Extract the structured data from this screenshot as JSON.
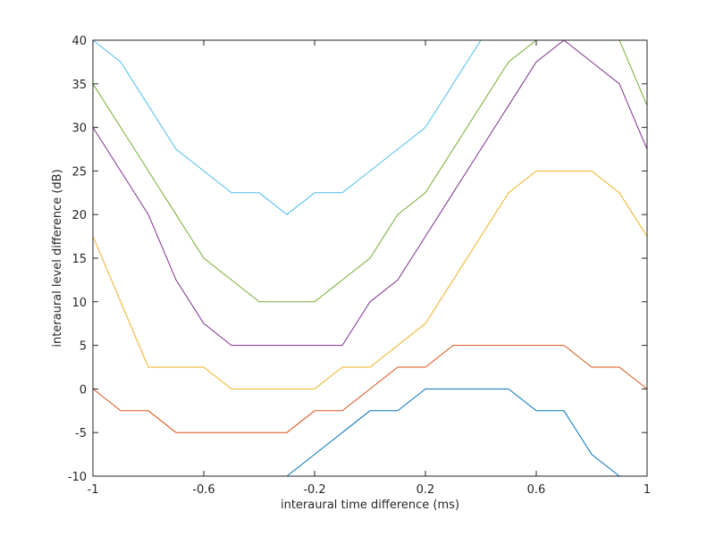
{
  "chart_data": {
    "type": "line",
    "title": "",
    "xlabel": "interaural time difference (ms)",
    "ylabel": "interaural level difference (dB)",
    "xlim": [
      -1,
      1
    ],
    "ylim": [
      -10,
      40
    ],
    "xticks": [
      -1,
      -0.6,
      -0.2,
      0.2,
      0.6,
      1
    ],
    "xtick_labels": [
      "-1",
      "-0.6",
      "-0.2",
      "0.2",
      "0.6",
      "1"
    ],
    "yticks": [
      -10,
      -5,
      0,
      5,
      10,
      15,
      20,
      25,
      30,
      35,
      40
    ],
    "ytick_labels": [
      "-10",
      "-5",
      "0",
      "5",
      "10",
      "15",
      "20",
      "25",
      "30",
      "35",
      "40"
    ],
    "grid": false,
    "legend": "none",
    "x": [
      -1,
      -0.9,
      -0.8,
      -0.7,
      -0.6,
      -0.5,
      -0.4,
      -0.3,
      -0.2,
      -0.1,
      0,
      0.1,
      0.2,
      0.3,
      0.4,
      0.5,
      0.6,
      0.7,
      0.8,
      0.9,
      1
    ],
    "series": [
      {
        "color": "#0072BD",
        "values": [
          -10,
          -10,
          -10,
          -10,
          -10,
          -10,
          -10,
          -10,
          -7.5,
          -5,
          -2.5,
          -2.5,
          0,
          0,
          0,
          0,
          -2.5,
          -2.5,
          -7.5,
          -10,
          -10
        ]
      },
      {
        "color": "#D95319",
        "values": [
          0,
          -2.5,
          -2.5,
          -5,
          -5,
          -5,
          -5,
          -5,
          -2.5,
          -2.5,
          0,
          2.5,
          2.5,
          5,
          5,
          5,
          5,
          5,
          2.5,
          2.5,
          0
        ]
      },
      {
        "color": "#EDB120",
        "values": [
          17.5,
          10,
          2.5,
          2.5,
          2.5,
          0,
          0,
          0,
          0,
          2.5,
          2.5,
          5,
          7.5,
          12.5,
          17.5,
          22.5,
          25,
          25,
          25,
          22.5,
          17.5
        ]
      },
      {
        "color": "#7E2F8E",
        "values": [
          30,
          25,
          20,
          12.5,
          7.5,
          5,
          5,
          5,
          5,
          5,
          10,
          12.5,
          17.5,
          22.5,
          27.5,
          32.5,
          37.5,
          40,
          37.5,
          35,
          27.5
        ]
      },
      {
        "color": "#77AC30",
        "values": [
          35,
          30,
          25,
          20,
          15,
          12.5,
          10,
          10,
          10,
          12.5,
          15,
          20,
          22.5,
          27.5,
          32.5,
          37.5,
          40,
          40,
          40,
          40,
          32.5
        ]
      },
      {
        "color": "#4DBEEE",
        "values": [
          40,
          37.5,
          32.5,
          27.5,
          25,
          22.5,
          22.5,
          20,
          22.5,
          22.5,
          25,
          27.5,
          30,
          35,
          40,
          40,
          40,
          40,
          40,
          40,
          40
        ]
      }
    ]
  }
}
